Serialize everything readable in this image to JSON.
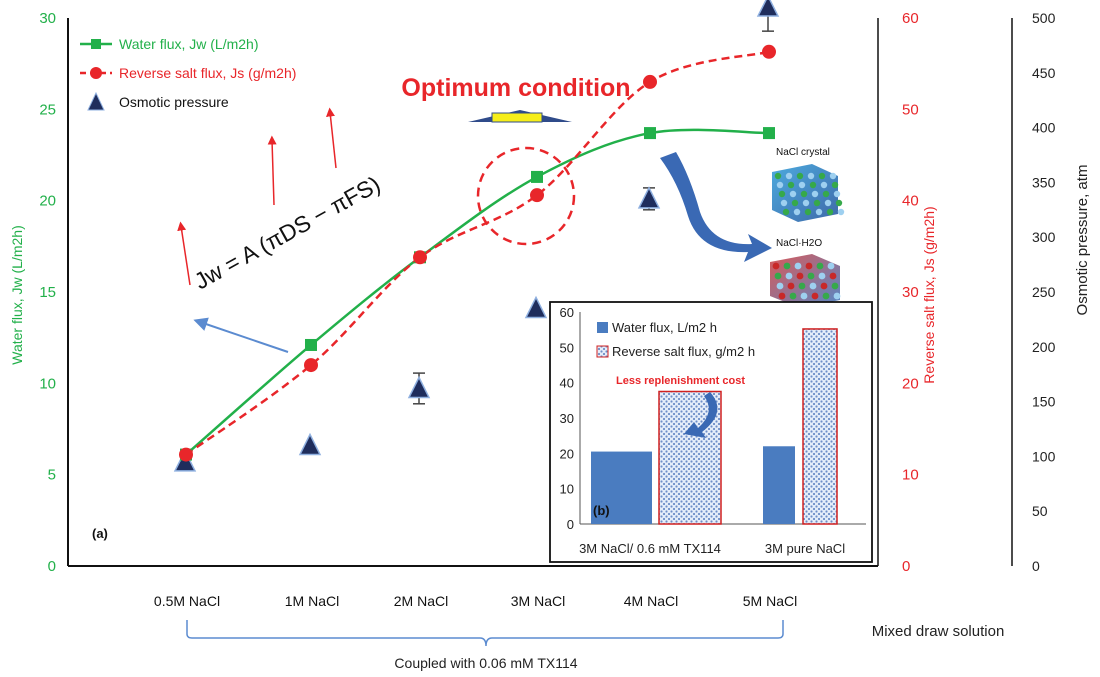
{
  "chart_data": [
    {
      "type": "line",
      "panel_label": "(a)",
      "categories": [
        "0.5M NaCl",
        "1M NaCl",
        "2M NaCl",
        "3M NaCl",
        "4M NaCl",
        "5M NaCl"
      ],
      "y_left": {
        "label": "Water flux, Jw (L/m2h)",
        "ticks": [
          "0",
          "5",
          "10",
          "15",
          "20",
          "25",
          "30"
        ],
        "range": [
          0,
          30
        ],
        "color": "#22b04a"
      },
      "y_right1": {
        "label": "Reverse salt flux, Js (g/m2h)",
        "ticks": [
          "0",
          "10",
          "20",
          "30",
          "40",
          "50",
          "60"
        ],
        "range": [
          0,
          60
        ],
        "color": "#e8262a"
      },
      "y_right2": {
        "label": "Osmotic pressure, atm",
        "ticks": [
          "0",
          "50",
          "100",
          "150",
          "200",
          "250",
          "300",
          "350",
          "400",
          "450",
          "500"
        ],
        "range": [
          0,
          500
        ],
        "color": "#222222"
      },
      "series": [
        {
          "name": "Water flux, Jw (L/m2h)",
          "axis": "left",
          "color": "#22b04a",
          "marker": "square",
          "values": [
            6.1,
            12.1,
            16.9,
            21.3,
            23.7,
            23.7
          ]
        },
        {
          "name": "Reverse salt flux, Js (g/m2h)",
          "axis": "right1",
          "color": "#e8262a",
          "marker": "circle",
          "dash": true,
          "values": [
            12.2,
            22.0,
            33.8,
            40.6,
            53.0,
            56.3
          ]
        },
        {
          "name": "Osmotic pressure",
          "axis": "right2",
          "color": "#1f2d5c",
          "marker": "triangle",
          "values": [
            95,
            110,
            162,
            235,
            335,
            510
          ],
          "error": [
            0,
            0,
            14,
            0,
            10,
            22
          ]
        }
      ],
      "annotations": {
        "optimum": "Optimum condition",
        "equation": "Jw = A (πDS − πFS)",
        "crystal1": "NaCl crystal",
        "crystal2": "NaCl·H2O",
        "x_group_label": "Coupled with 0.06 mM TX114",
        "x_axis_title": "Mixed draw solution"
      }
    },
    {
      "type": "bar",
      "panel_label": "(b)",
      "categories": [
        "3M NaCl/  0.6 mM TX114",
        "3M pure NaCl"
      ],
      "y_ticks": [
        "0",
        "10",
        "20",
        "30",
        "40",
        "50",
        "60"
      ],
      "ylim": [
        0,
        60
      ],
      "series": [
        {
          "name": "Water flux, L/m2 h",
          "color": "#4a7cc0",
          "values": [
            20.5,
            22.0
          ]
        },
        {
          "name": "Reverse salt flux, g/m2 h",
          "color": "#bcd0ec",
          "values": [
            37.5,
            55.2
          ]
        }
      ],
      "annotation": "Less replenishment cost"
    }
  ]
}
